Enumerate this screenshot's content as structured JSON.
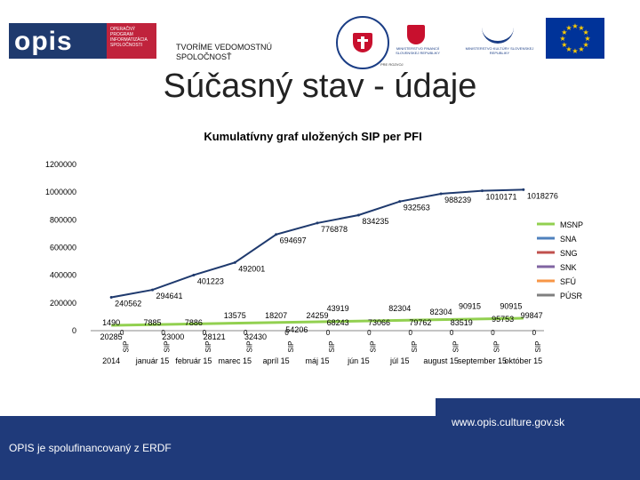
{
  "header": {
    "logo_text": "opis",
    "logo_side_lines": [
      "OPERAČNÝ",
      "PROGRAM",
      "INFORMATIZÁCIA",
      "SPOLOČNOSTI"
    ],
    "tagline": "TVORÍME VEDOMOSTNÚ SPOLOČNOSŤ",
    "ministry1_text": "MINISTERSTVO FINANCIÍ SLOVENSKEJ REPUBLIKY",
    "ministry2_text": "MINISTERSTVO KULTÚRY SLOVENSKEJ REPUBLIKY",
    "crest_caption": "PRE ROZVOJ"
  },
  "title": "Súčasný stav - údaje",
  "footer": {
    "erdf": "OPIS je spolufinancovaný z ERDF",
    "website": "www.opis.culture.gov.sk"
  },
  "colors": {
    "navy": "#1f3a7a",
    "eu_blue": "#003399",
    "eu_star": "#ffcc00",
    "line": "#1f3a6e",
    "msnp": "#92d050",
    "sna": "#4f81bd",
    "sng": "#c0504d",
    "snk": "#8064a2",
    "sfu": "#f79646",
    "pusr": "#7f7f7f"
  },
  "chart_data": {
    "type": "line",
    "title": "Kumulatívny graf uložených SIP per PFI",
    "ylim": [
      0,
      1200000
    ],
    "yticks": [
      "1200000",
      "1000000",
      "800000",
      "600000",
      "400000",
      "200000",
      "0"
    ],
    "categories": [
      "2014",
      "január 15",
      "február 15",
      "marec 15",
      "apríl 15",
      "máj 15",
      "jún 15",
      "júl 15",
      "august 15",
      "september 15",
      "október 15"
    ],
    "sublabel": "SIP",
    "cumulative": {
      "x": [
        0,
        1,
        2,
        3,
        4,
        5,
        6,
        7,
        8,
        9,
        10
      ],
      "values": [
        240562,
        294641,
        401223,
        492001,
        694697,
        776878,
        834235,
        932563,
        988239,
        1010171,
        1018276
      ],
      "labels": [
        "240562",
        "294641",
        "401223",
        "492001",
        "694697",
        "776878",
        "834235",
        "932563",
        "988239",
        "1010171",
        "1018276"
      ]
    },
    "series_labels": [
      {
        "text": "1490",
        "x": 0,
        "row": 1
      },
      {
        "text": "20285",
        "x": 0,
        "row": 3
      },
      {
        "text": "7885",
        "x": 1,
        "row": 1
      },
      {
        "text": "23000",
        "x": 1.5,
        "row": 3
      },
      {
        "text": "7886",
        "x": 2,
        "row": 1
      },
      {
        "text": "28121",
        "x": 2.5,
        "row": 3
      },
      {
        "text": "13575",
        "x": 3,
        "row": 0
      },
      {
        "text": "32430",
        "x": 3.5,
        "row": 3
      },
      {
        "text": "18207",
        "x": 4,
        "row": 0
      },
      {
        "text": "24259",
        "x": 5,
        "row": 0
      },
      {
        "text": "54206",
        "x": 4.5,
        "row": 2
      },
      {
        "text": "43919",
        "x": 5.5,
        "row": -1
      },
      {
        "text": "68243",
        "x": 5.5,
        "row": 1
      },
      {
        "text": "73066",
        "x": 6.5,
        "row": 1
      },
      {
        "text": "82304",
        "x": 7,
        "row": -1
      },
      {
        "text": "79762",
        "x": 7.5,
        "row": 1
      },
      {
        "text": "82304",
        "x": 8,
        "row": -0.5
      },
      {
        "text": "83519",
        "x": 8.5,
        "row": 1
      },
      {
        "text": "90915",
        "x": 8.7,
        "row": -1.3
      },
      {
        "text": "95753",
        "x": 9.5,
        "row": 0.5
      },
      {
        "text": "90915",
        "x": 9.7,
        "row": -1.3
      },
      {
        "text": "99847",
        "x": 10.2,
        "row": 0
      }
    ],
    "zero_labels": [
      "0",
      "0",
      "0",
      "0",
      "0",
      "0",
      "0",
      "0",
      "0",
      "0",
      "0"
    ],
    "legend": [
      "MSNP",
      "SNA",
      "SNG",
      "SNK",
      "SFÚ",
      "PÚSR"
    ],
    "legend_position": "right"
  }
}
